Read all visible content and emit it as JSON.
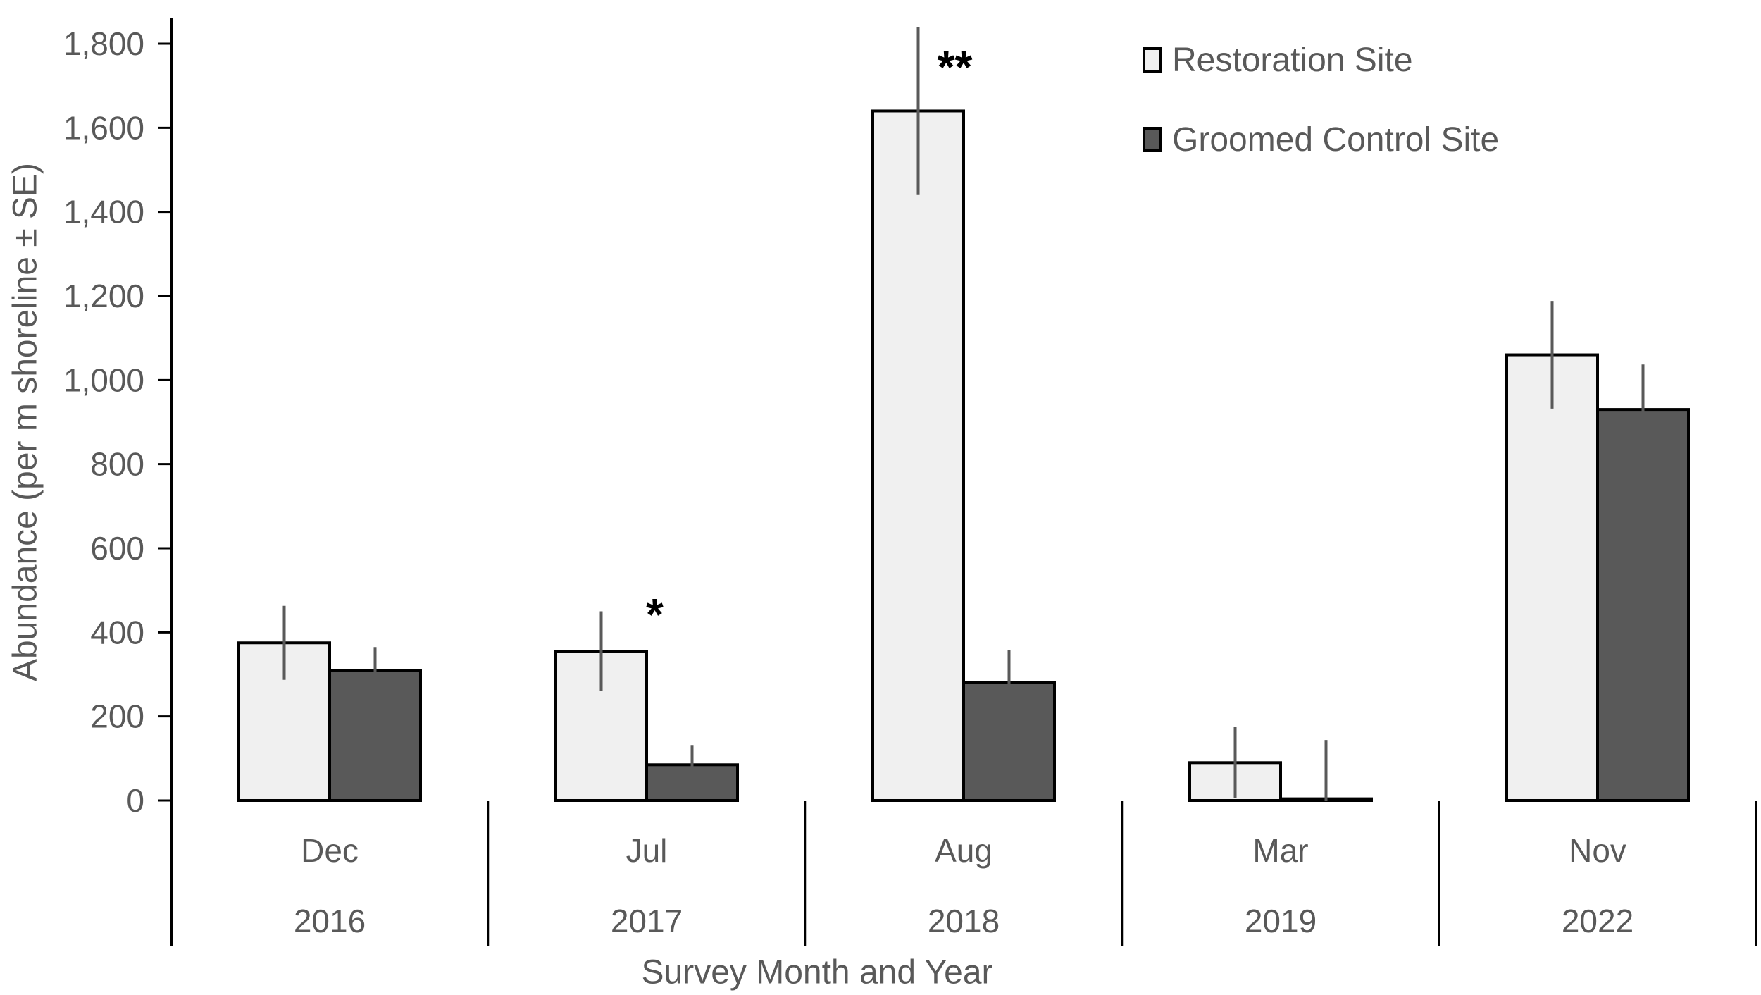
{
  "chart_data": {
    "type": "bar",
    "title": "",
    "xlabel": "Survey Month and Year",
    "ylabel": "Abundance (per m shoreline ± SE)",
    "ylim": [
      0,
      1800
    ],
    "ytick_step": 200,
    "ytick_labels": [
      "0",
      "200",
      "400",
      "600",
      "800",
      "1,000",
      "1,200",
      "1,400",
      "1,600",
      "1,800"
    ],
    "grid": false,
    "legend_position": "top-right-inside",
    "categories": [
      {
        "month": "Dec",
        "year": "2016"
      },
      {
        "month": "Jul",
        "year": "2017"
      },
      {
        "month": "Aug",
        "year": "2018"
      },
      {
        "month": "Mar",
        "year": "2019"
      },
      {
        "month": "Nov",
        "year": "2022"
      }
    ],
    "series": [
      {
        "name": "Restoration Site",
        "fill": "#f0f0f0",
        "values": [
          375,
          355,
          1640,
          90,
          1060
        ],
        "se": [
          88,
          95,
          200,
          85,
          128
        ]
      },
      {
        "name": "Groomed Control Site",
        "fill": "#595959",
        "values": [
          310,
          85,
          280,
          4,
          930
        ],
        "se": [
          55,
          47,
          78,
          140,
          107
        ]
      }
    ],
    "annotations": [
      {
        "text": "*",
        "category_index": 1,
        "series_index": 0,
        "value": 446,
        "x_offset": 76
      },
      {
        "text": "**",
        "category_index": 2,
        "series_index": 0,
        "value": 1748,
        "x_offset": 52
      }
    ],
    "colors": {
      "axis": "#000000",
      "text": "#595959",
      "error_bar": "#595959",
      "bar_border": "#000000",
      "background": "#ffffff"
    }
  }
}
